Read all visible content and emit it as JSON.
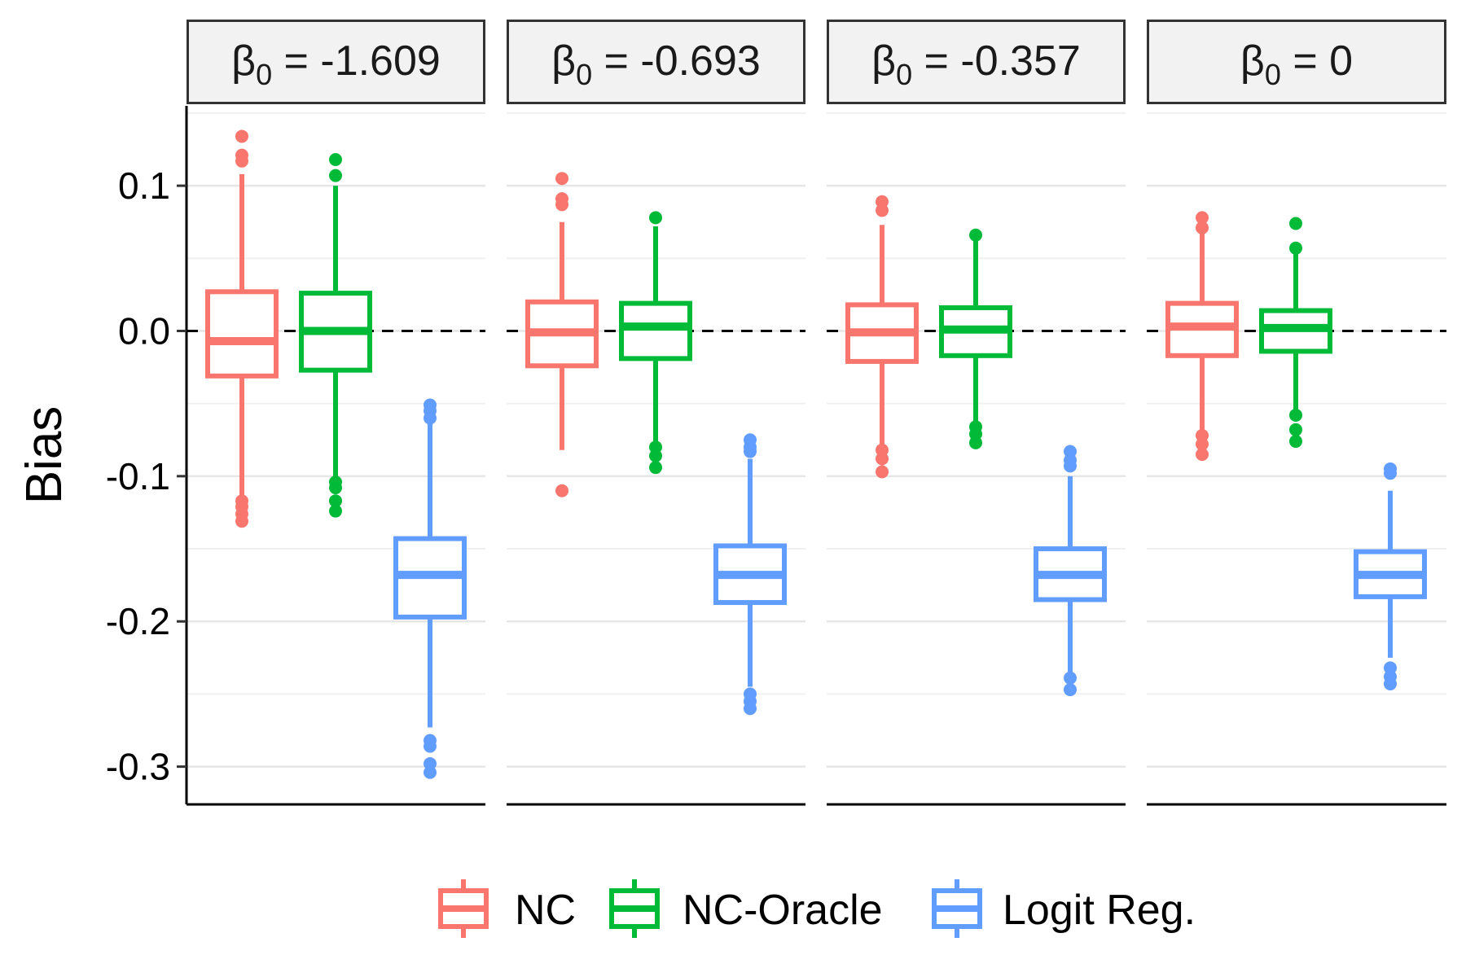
{
  "chart_data": {
    "type": "box",
    "ylabel": "Bias",
    "xlabel": "",
    "ylim": [
      -0.326,
      0.155
    ],
    "yticks": [
      0.1,
      0.0,
      -0.1,
      -0.2,
      -0.3
    ],
    "ytick_labels": [
      "0.1",
      "0.0",
      "-0.1",
      "-0.2",
      "-0.3"
    ],
    "reference_line": {
      "y": 0,
      "style": "dashed"
    },
    "grid": {
      "horizontal": true,
      "vertical": false
    },
    "legend": {
      "position": "bottom"
    },
    "series_colors": {
      "NC": "#F8766D",
      "NC-Oracle": "#00BA38",
      "Logit Reg.": "#619CFF"
    },
    "series_names": [
      "NC",
      "NC-Oracle",
      "Logit Reg."
    ],
    "panels": [
      {
        "strip_symbol": "β",
        "strip_subscript": "0",
        "strip_value": " = -1.609",
        "boxes": [
          {
            "series": "NC",
            "whisker_low": -0.113,
            "q1": -0.031,
            "median": -0.007,
            "q3": 0.027,
            "whisker_high": 0.108,
            "outliers": [
              0.134,
              0.121,
              0.117,
              -0.117,
              -0.121,
              -0.126,
              -0.131
            ]
          },
          {
            "series": "NC-Oracle",
            "whisker_low": -0.101,
            "q1": -0.027,
            "median": 0.0,
            "q3": 0.026,
            "whisker_high": 0.1,
            "outliers": [
              0.118,
              0.107,
              -0.104,
              -0.108,
              -0.117,
              -0.124
            ]
          },
          {
            "series": "Logit Reg.",
            "whisker_low": -0.273,
            "q1": -0.197,
            "median": -0.168,
            "q3": -0.143,
            "whisker_high": -0.064,
            "outliers": [
              -0.051,
              -0.055,
              -0.06,
              -0.282,
              -0.286,
              -0.298,
              -0.304
            ]
          }
        ]
      },
      {
        "strip_symbol": "β",
        "strip_subscript": "0",
        "strip_value": " = -0.693",
        "boxes": [
          {
            "series": "NC",
            "whisker_low": -0.082,
            "q1": -0.024,
            "median": -0.001,
            "q3": 0.02,
            "whisker_high": 0.075,
            "outliers": [
              0.105,
              0.091,
              0.087,
              -0.11
            ]
          },
          {
            "series": "NC-Oracle",
            "whisker_low": -0.077,
            "q1": -0.019,
            "median": 0.003,
            "q3": 0.019,
            "whisker_high": 0.072,
            "outliers": [
              0.078,
              -0.08,
              -0.086,
              -0.094
            ]
          },
          {
            "series": "Logit Reg.",
            "whisker_low": -0.245,
            "q1": -0.187,
            "median": -0.168,
            "q3": -0.148,
            "whisker_high": -0.088,
            "outliers": [
              -0.075,
              -0.08,
              -0.083,
              -0.25,
              -0.255,
              -0.26
            ]
          }
        ]
      },
      {
        "strip_symbol": "β",
        "strip_subscript": "0",
        "strip_value": " = -0.357",
        "boxes": [
          {
            "series": "NC",
            "whisker_low": -0.08,
            "q1": -0.021,
            "median": -0.001,
            "q3": 0.018,
            "whisker_high": 0.073,
            "outliers": [
              0.089,
              0.083,
              -0.082,
              -0.088,
              -0.097
            ]
          },
          {
            "series": "NC-Oracle",
            "whisker_low": -0.065,
            "q1": -0.017,
            "median": 0.001,
            "q3": 0.016,
            "whisker_high": 0.065,
            "outliers": [
              0.066,
              -0.066,
              -0.071,
              -0.077
            ]
          },
          {
            "series": "Logit Reg.",
            "whisker_low": -0.238,
            "q1": -0.185,
            "median": -0.168,
            "q3": -0.15,
            "whisker_high": -0.1,
            "outliers": [
              -0.083,
              -0.089,
              -0.093,
              -0.239,
              -0.247
            ]
          }
        ]
      },
      {
        "strip_symbol": "β",
        "strip_subscript": "0",
        "strip_value": " = 0",
        "boxes": [
          {
            "series": "NC",
            "whisker_low": -0.07,
            "q1": -0.017,
            "median": 0.003,
            "q3": 0.019,
            "whisker_high": 0.072,
            "outliers": [
              0.078,
              0.071,
              -0.072,
              -0.078,
              -0.085
            ]
          },
          {
            "series": "NC-Oracle",
            "whisker_low": -0.058,
            "q1": -0.014,
            "median": 0.002,
            "q3": 0.014,
            "whisker_high": 0.057,
            "outliers": [
              0.074,
              0.057,
              -0.058,
              -0.068,
              -0.076
            ]
          },
          {
            "series": "Logit Reg.",
            "whisker_low": -0.225,
            "q1": -0.183,
            "median": -0.168,
            "q3": -0.152,
            "whisker_high": -0.11,
            "outliers": [
              -0.095,
              -0.098,
              -0.232,
              -0.238,
              -0.243
            ]
          }
        ]
      }
    ]
  }
}
